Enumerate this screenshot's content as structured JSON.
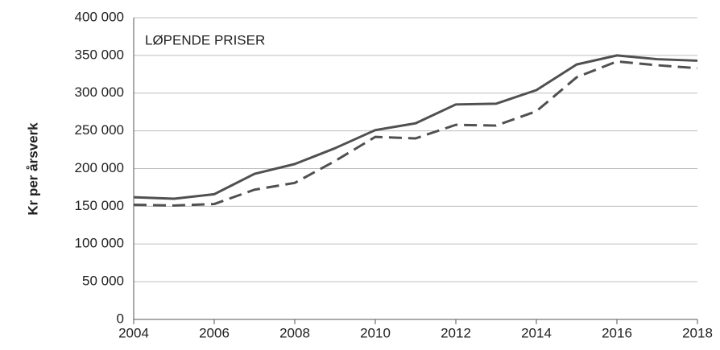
{
  "chart_data": {
    "type": "line",
    "annotation": "LØPENDE PRISER",
    "y_label": "Kr per årsverk",
    "x": [
      2004,
      2005,
      2006,
      2007,
      2008,
      2009,
      2010,
      2011,
      2012,
      2013,
      2014,
      2015,
      2016,
      2017,
      2018
    ],
    "series": [
      {
        "color": "#505050",
        "dashed": false,
        "values": [
          162000,
          160000,
          166000,
          193000,
          206000,
          227000,
          251000,
          260000,
          285000,
          286000,
          304000,
          338000,
          350000,
          345000,
          343000
        ]
      },
      {
        "color": "#505050",
        "dashed": true,
        "values": [
          152000,
          151000,
          153000,
          172000,
          181000,
          210000,
          242000,
          240000,
          258000,
          257000,
          276000,
          321000,
          342000,
          337000,
          333000
        ]
      }
    ],
    "xlim": [
      2004,
      2018
    ],
    "xticks": [
      2004,
      2006,
      2008,
      2010,
      2012,
      2014,
      2016,
      2018
    ],
    "ylim": [
      0,
      400000
    ],
    "yticks": [
      0,
      {
        "value": 50000,
        "label": "50 000"
      },
      {
        "value": 100000,
        "label": "100 000"
      },
      {
        "value": 150000,
        "label": "150 000"
      },
      {
        "value": 200000,
        "label": "200 000"
      },
      {
        "value": 250000,
        "label": "250 000"
      },
      {
        "value": 300000,
        "label": "300 000"
      },
      {
        "value": 350000,
        "label": "350 000"
      },
      {
        "value": 400000,
        "label": "400 000"
      }
    ],
    "grid": true
  }
}
